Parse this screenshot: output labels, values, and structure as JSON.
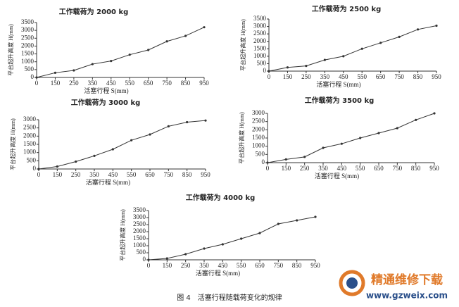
{
  "chart_data": [
    {
      "type": "line",
      "title": "工作载荷为 2000 kg",
      "xlabel": "活塞行程 S(mm)",
      "ylabel": "平台起升高度 H(mm)",
      "categories": [
        "0",
        "150",
        "250",
        "350",
        "450",
        "550",
        "650",
        "750",
        "850",
        "950"
      ],
      "values": [
        0,
        300,
        450,
        850,
        1050,
        1450,
        1750,
        2300,
        2650,
        3200
      ],
      "color": "#333333",
      "ylim": [
        0,
        3500
      ],
      "yticks": [
        0,
        500,
        1000,
        1500,
        2000,
        2500,
        3000,
        3500
      ]
    },
    {
      "type": "line",
      "title": "工作载荷为 2500 kg",
      "xlabel": "活塞行程 S(mm)",
      "ylabel": "平台起升高度 H(mm)",
      "categories": [
        "0",
        "150",
        "250",
        "350",
        "450",
        "550",
        "650",
        "750",
        "850",
        "950"
      ],
      "values": [
        0,
        250,
        350,
        750,
        1000,
        1500,
        1900,
        2300,
        2800,
        3050
      ],
      "color": "#333333",
      "ylim": [
        0,
        3500
      ],
      "yticks": [
        0,
        500,
        1000,
        1500,
        2000,
        2500,
        3000,
        3500
      ]
    },
    {
      "type": "line",
      "title": "工作载荷为 3000 kg",
      "xlabel": "活塞行程 S(mm)",
      "ylabel": "平台起升高度 H(mm)",
      "categories": [
        "0",
        "150",
        "250",
        "350",
        "450",
        "550",
        "650",
        "750",
        "850",
        "950"
      ],
      "values": [
        0,
        150,
        450,
        800,
        1200,
        1750,
        2100,
        2600,
        2850,
        2950
      ],
      "color": "#333333",
      "ylim": [
        0,
        3000
      ],
      "yticks": [
        0,
        500,
        1000,
        1500,
        2000,
        2500,
        3000
      ]
    },
    {
      "type": "line",
      "title": "工作载荷为 3500 kg",
      "xlabel": "活塞行程 S(mm)",
      "ylabel": "平台起升高度 H(mm)",
      "categories": [
        "0",
        "150",
        "250",
        "350",
        "450",
        "550",
        "650",
        "750",
        "850",
        "950"
      ],
      "values": [
        0,
        200,
        350,
        900,
        1150,
        1500,
        1800,
        2100,
        2600,
        3000
      ],
      "color": "#333333",
      "ylim": [
        0,
        3000
      ],
      "yticks": [
        0,
        500,
        1000,
        1500,
        2000,
        2500,
        3000
      ]
    },
    {
      "type": "line",
      "title": "工作载荷为 4000 kg",
      "xlabel": "活塞行程 S(mm)",
      "ylabel": "平台起升高度 H(mm)",
      "categories": [
        "0",
        "150",
        "250",
        "350",
        "450",
        "550",
        "650",
        "750",
        "850",
        "950"
      ],
      "values": [
        0,
        100,
        400,
        800,
        1100,
        1500,
        1900,
        2550,
        2800,
        3050
      ],
      "color": "#333333",
      "ylim": [
        0,
        3500
      ],
      "yticks": [
        0,
        500,
        1000,
        1500,
        2000,
        2500,
        3000,
        3500
      ]
    }
  ],
  "caption": "图 4　活塞行程随载荷变化的规律",
  "watermark": {
    "name": "精通维修下载",
    "url": "www.gzweix.com"
  }
}
